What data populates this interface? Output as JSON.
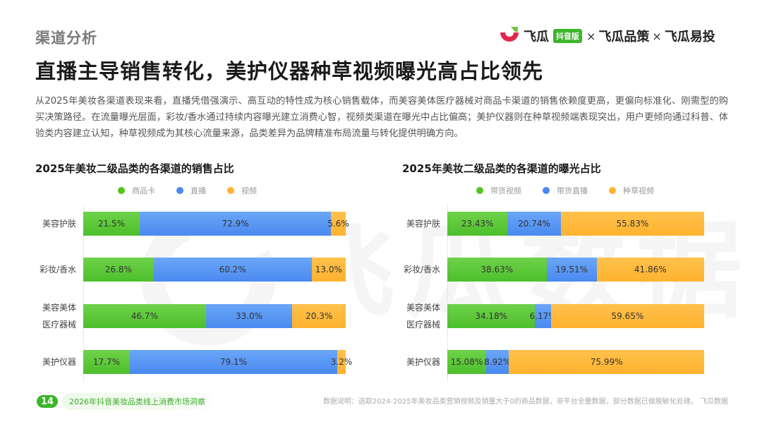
{
  "header": {
    "section_label": "渠道分析",
    "title": "直播主导销售转化，美护仪器种草视频曝光高占比领先"
  },
  "brand": {
    "name1": "飞瓜",
    "badge": "抖音版",
    "sep": "×",
    "name2": "飞瓜品策",
    "name3": "飞瓜易投",
    "colors": {
      "logo_red": "#e0284a",
      "logo_green": "#7bc043",
      "badge_green": "#3cb52a"
    }
  },
  "intro": "从2025年美妆各渠道表现来看，直播凭借强演示、高互动的特性成为核心销售载体，而美容美体医疗器械对商品卡渠道的销售依赖度更高，更偏向标准化、刚需型的购买决策路径。在流量曝光层面，彩妆/香水通过持续内容曝光建立消费心智，视频类渠道在曝光中占比偏高；美护仪器则在种草视频端表现突出，用户更倾向通过科普、体验类内容建立认知，种草视频成为其核心流量来源，品类差异为品牌精准布局流量与转化提供明确方向。",
  "watermark": "飞瓜数据",
  "chart_data": [
    {
      "type": "bar",
      "orientation": "horizontal",
      "stacked": "percent",
      "title": "2025年美妆二级品类的各渠道的销售占比",
      "legend_position": "top",
      "grid": false,
      "categories": [
        "美容护肤",
        "彩妆/香水",
        "美容美体医疗器械",
        "美护仪器"
      ],
      "category_labels": [
        [
          "美容护肤"
        ],
        [
          "彩妆/香水"
        ],
        [
          "美容美体",
          "医疗器械"
        ],
        [
          "美护仪器"
        ]
      ],
      "series": [
        {
          "name": "商品卡",
          "color": "#52c41a",
          "values": [
            21.5,
            26.8,
            46.7,
            17.7
          ],
          "labels": [
            "21.5%",
            "26.8%",
            "46.7%",
            "17.7%"
          ]
        },
        {
          "name": "直播",
          "color": "#4a89f0",
          "values": [
            72.9,
            60.2,
            33.0,
            79.1
          ],
          "labels": [
            "72.9%",
            "60.2%",
            "33.0%",
            "79.1%"
          ]
        },
        {
          "name": "视频",
          "color": "#ffb22e",
          "values": [
            5.6,
            13.0,
            20.3,
            3.2
          ],
          "labels": [
            "5.6%",
            "13.0%",
            "20.3%",
            "3.2%"
          ]
        }
      ],
      "xlim": [
        0,
        100
      ],
      "unit": "%"
    },
    {
      "type": "bar",
      "orientation": "horizontal",
      "stacked": "percent",
      "title": "2025年美妆二级品类的各渠道的曝光占比",
      "legend_position": "top",
      "grid": false,
      "categories": [
        "美容护肤",
        "彩妆/香水",
        "美容美体医疗器械",
        "美护仪器"
      ],
      "category_labels": [
        [
          "美容护肤"
        ],
        [
          "彩妆/香水"
        ],
        [
          "美容美体",
          "医疗器械"
        ],
        [
          "美护仪器"
        ]
      ],
      "series": [
        {
          "name": "带货视频",
          "color": "#52c41a",
          "values": [
            23.43,
            38.63,
            34.18,
            15.08
          ],
          "labels": [
            "23.43%",
            "38.63%",
            "34.18%",
            "15.08%"
          ]
        },
        {
          "name": "带货直播",
          "color": "#4a89f0",
          "values": [
            20.74,
            19.51,
            6.17,
            8.92
          ],
          "labels": [
            "20.74%",
            "19.51%",
            "6.17%",
            "8.92%"
          ]
        },
        {
          "name": "种草视频",
          "color": "#ffb22e",
          "values": [
            55.83,
            41.86,
            59.65,
            75.99
          ],
          "labels": [
            "55.83%",
            "41.86%",
            "59.65%",
            "75.99%"
          ]
        }
      ],
      "xlim": [
        0,
        100
      ],
      "unit": "%"
    }
  ],
  "footer": {
    "page_number": "14",
    "report_title": "2026年抖音美妆品类线上消费市场洞察",
    "data_note": "数据说明：选取2024-2025年美妆品类营销视频及销量大于0的商品数据，非平台全量数据，部分数据已做脱敏化处理。 飞瓜数据"
  }
}
